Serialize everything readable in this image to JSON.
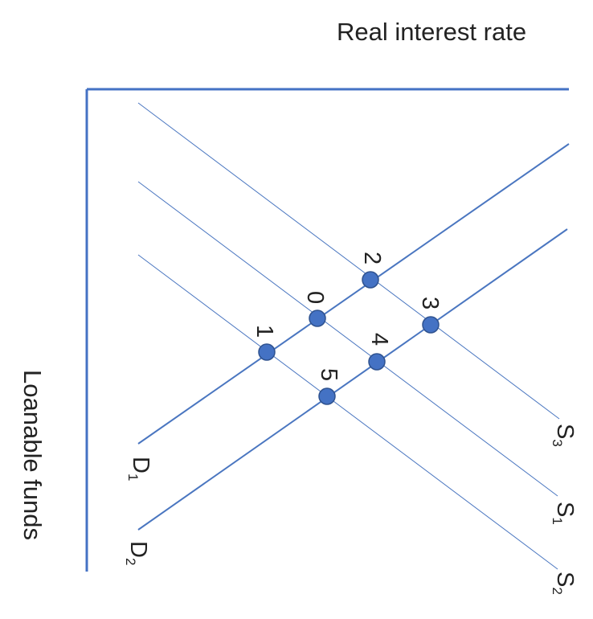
{
  "axes": {
    "y_label": "Real interest rate",
    "x_label": "Loanable funds"
  },
  "demand_curves": [
    {
      "name": "D",
      "subscript": "1"
    },
    {
      "name": "D",
      "subscript": "2"
    }
  ],
  "supply_curves": [
    {
      "name": "S",
      "subscript": "3"
    },
    {
      "name": "S",
      "subscript": "1"
    },
    {
      "name": "S",
      "subscript": "2"
    }
  ],
  "points": [
    {
      "label": "0",
      "on": [
        "D1",
        "S1"
      ]
    },
    {
      "label": "1",
      "on": [
        "D1",
        "S2"
      ]
    },
    {
      "label": "2",
      "on": [
        "D1",
        "S3"
      ]
    },
    {
      "label": "3",
      "on": [
        "D2",
        "S3"
      ]
    },
    {
      "label": "4",
      "on": [
        "D2",
        "S1"
      ]
    },
    {
      "label": "5",
      "on": [
        "D2",
        "S2"
      ]
    }
  ],
  "colors": {
    "axis": "#4472c4",
    "line": "#4a76c0",
    "dot_fill": "#4472c4",
    "dot_stroke": "#2f528f",
    "text": "#222222"
  }
}
